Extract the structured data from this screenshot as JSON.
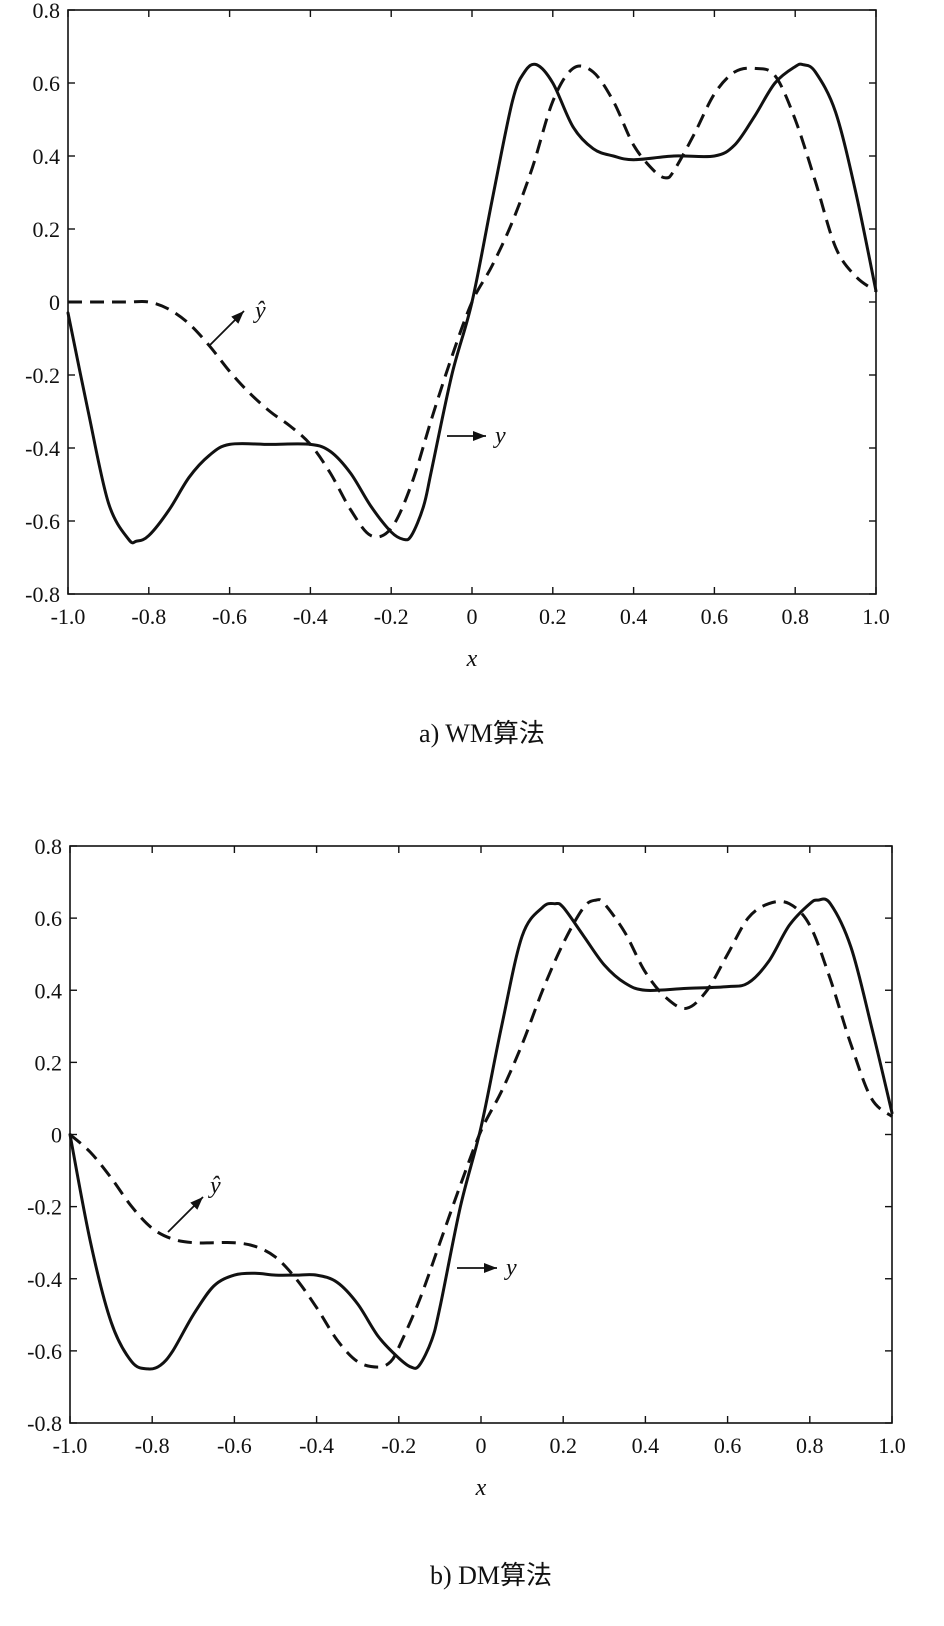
{
  "chart_data": [
    {
      "type": "line",
      "caption": "a) WM算法",
      "xlabel": "x",
      "ylabel": "",
      "xlim": [
        -1.0,
        1.0
      ],
      "ylim": [
        -0.8,
        0.8
      ],
      "xticks": [
        "-1.0",
        "-0.8",
        "-0.6",
        "-0.4",
        "-0.2",
        "0",
        "0.2",
        "0.4",
        "0.6",
        "0.8",
        "1.0"
      ],
      "yticks": [
        "0.8",
        "0.6",
        "0.4",
        "0.2",
        "0",
        "-0.2",
        "-0.4",
        "-0.6",
        "-0.8"
      ],
      "grid": false,
      "series": [
        {
          "name": "y",
          "style": "solid",
          "x": [
            -1.0,
            -0.95,
            -0.9,
            -0.85,
            -0.83,
            -0.8,
            -0.75,
            -0.7,
            -0.65,
            -0.6,
            -0.5,
            -0.4,
            -0.35,
            -0.3,
            -0.25,
            -0.2,
            -0.17,
            -0.15,
            -0.12,
            -0.1,
            -0.05,
            0.0,
            0.05,
            0.1,
            0.13,
            0.16,
            0.2,
            0.25,
            0.3,
            0.35,
            0.4,
            0.5,
            0.6,
            0.65,
            0.7,
            0.75,
            0.8,
            0.82,
            0.85,
            0.9,
            0.95,
            1.0
          ],
          "y": [
            -0.03,
            -0.3,
            -0.55,
            -0.65,
            -0.655,
            -0.64,
            -0.57,
            -0.48,
            -0.42,
            -0.39,
            -0.39,
            -0.39,
            -0.41,
            -0.47,
            -0.56,
            -0.63,
            -0.65,
            -0.64,
            -0.56,
            -0.46,
            -0.2,
            0.0,
            0.28,
            0.55,
            0.63,
            0.65,
            0.6,
            0.48,
            0.42,
            0.4,
            0.39,
            0.4,
            0.4,
            0.43,
            0.51,
            0.6,
            0.645,
            0.65,
            0.63,
            0.52,
            0.3,
            0.03
          ]
        },
        {
          "name": "ŷ",
          "style": "dashed",
          "x": [
            -1.0,
            -0.9,
            -0.85,
            -0.8,
            -0.75,
            -0.7,
            -0.65,
            -0.6,
            -0.55,
            -0.5,
            -0.45,
            -0.4,
            -0.35,
            -0.3,
            -0.25,
            -0.2,
            -0.15,
            -0.1,
            -0.05,
            0.0,
            0.05,
            0.1,
            0.15,
            0.2,
            0.25,
            0.3,
            0.35,
            0.4,
            0.45,
            0.48,
            0.5,
            0.55,
            0.6,
            0.65,
            0.7,
            0.75,
            0.8,
            0.85,
            0.9,
            0.95,
            1.0
          ],
          "y": [
            0.0,
            0.0,
            0.0,
            0.0,
            -0.02,
            -0.06,
            -0.12,
            -0.19,
            -0.25,
            -0.3,
            -0.34,
            -0.39,
            -0.47,
            -0.57,
            -0.64,
            -0.62,
            -0.5,
            -0.32,
            -0.15,
            0.0,
            0.1,
            0.22,
            0.37,
            0.55,
            0.64,
            0.63,
            0.55,
            0.43,
            0.36,
            0.34,
            0.36,
            0.46,
            0.57,
            0.63,
            0.64,
            0.62,
            0.5,
            0.33,
            0.15,
            0.07,
            0.03
          ]
        }
      ],
      "annotations": [
        {
          "text": "ŷ",
          "series": "ŷ"
        },
        {
          "text": "y",
          "series": "y"
        }
      ]
    },
    {
      "type": "line",
      "caption": "b) DM算法",
      "xlabel": "x",
      "ylabel": "",
      "xlim": [
        -1.0,
        1.0
      ],
      "ylim": [
        -0.8,
        0.8
      ],
      "xticks": [
        "-1.0",
        "-0.8",
        "-0.6",
        "-0.4",
        "-0.2",
        "0",
        "0.2",
        "0.4",
        "0.6",
        "0.8",
        "1.0"
      ],
      "yticks": [
        "0.8",
        "0.6",
        "0.4",
        "0.2",
        "0",
        "-0.2",
        "-0.4",
        "-0.6",
        "-0.8"
      ],
      "grid": false,
      "series": [
        {
          "name": "y",
          "style": "solid",
          "x": [
            -1.0,
            -0.95,
            -0.9,
            -0.85,
            -0.81,
            -0.78,
            -0.75,
            -0.7,
            -0.65,
            -0.6,
            -0.55,
            -0.5,
            -0.45,
            -0.4,
            -0.35,
            -0.3,
            -0.25,
            -0.2,
            -0.17,
            -0.15,
            -0.12,
            -0.1,
            -0.05,
            0.0,
            0.05,
            0.1,
            0.15,
            0.18,
            0.2,
            0.25,
            0.3,
            0.35,
            0.4,
            0.5,
            0.6,
            0.65,
            0.7,
            0.75,
            0.8,
            0.82,
            0.85,
            0.9,
            0.95,
            1.0
          ],
          "y": [
            0.0,
            -0.3,
            -0.52,
            -0.63,
            -0.65,
            -0.64,
            -0.6,
            -0.5,
            -0.42,
            -0.39,
            -0.385,
            -0.39,
            -0.39,
            -0.39,
            -0.41,
            -0.47,
            -0.56,
            -0.62,
            -0.645,
            -0.64,
            -0.57,
            -0.48,
            -0.2,
            0.02,
            0.3,
            0.55,
            0.63,
            0.64,
            0.63,
            0.55,
            0.47,
            0.42,
            0.4,
            0.405,
            0.41,
            0.42,
            0.48,
            0.58,
            0.64,
            0.65,
            0.64,
            0.52,
            0.3,
            0.06
          ]
        },
        {
          "name": "ŷ",
          "style": "dashed",
          "x": [
            -1.0,
            -0.95,
            -0.9,
            -0.85,
            -0.8,
            -0.75,
            -0.7,
            -0.65,
            -0.6,
            -0.55,
            -0.5,
            -0.45,
            -0.4,
            -0.35,
            -0.3,
            -0.25,
            -0.22,
            -0.2,
            -0.15,
            -0.1,
            -0.05,
            0.0,
            0.05,
            0.1,
            0.15,
            0.2,
            0.25,
            0.28,
            0.3,
            0.35,
            0.4,
            0.45,
            0.5,
            0.55,
            0.6,
            0.65,
            0.7,
            0.75,
            0.8,
            0.85,
            0.9,
            0.95,
            1.0
          ],
          "y": [
            0.0,
            -0.05,
            -0.12,
            -0.2,
            -0.26,
            -0.29,
            -0.3,
            -0.3,
            -0.3,
            -0.31,
            -0.34,
            -0.4,
            -0.48,
            -0.57,
            -0.63,
            -0.645,
            -0.63,
            -0.59,
            -0.46,
            -0.3,
            -0.14,
            0.01,
            0.12,
            0.25,
            0.4,
            0.53,
            0.63,
            0.65,
            0.64,
            0.56,
            0.45,
            0.38,
            0.35,
            0.4,
            0.5,
            0.6,
            0.64,
            0.64,
            0.58,
            0.43,
            0.25,
            0.1,
            0.05
          ]
        }
      ],
      "annotations": [
        {
          "text": "ŷ",
          "series": "ŷ"
        },
        {
          "text": "y",
          "series": "y"
        }
      ]
    }
  ]
}
